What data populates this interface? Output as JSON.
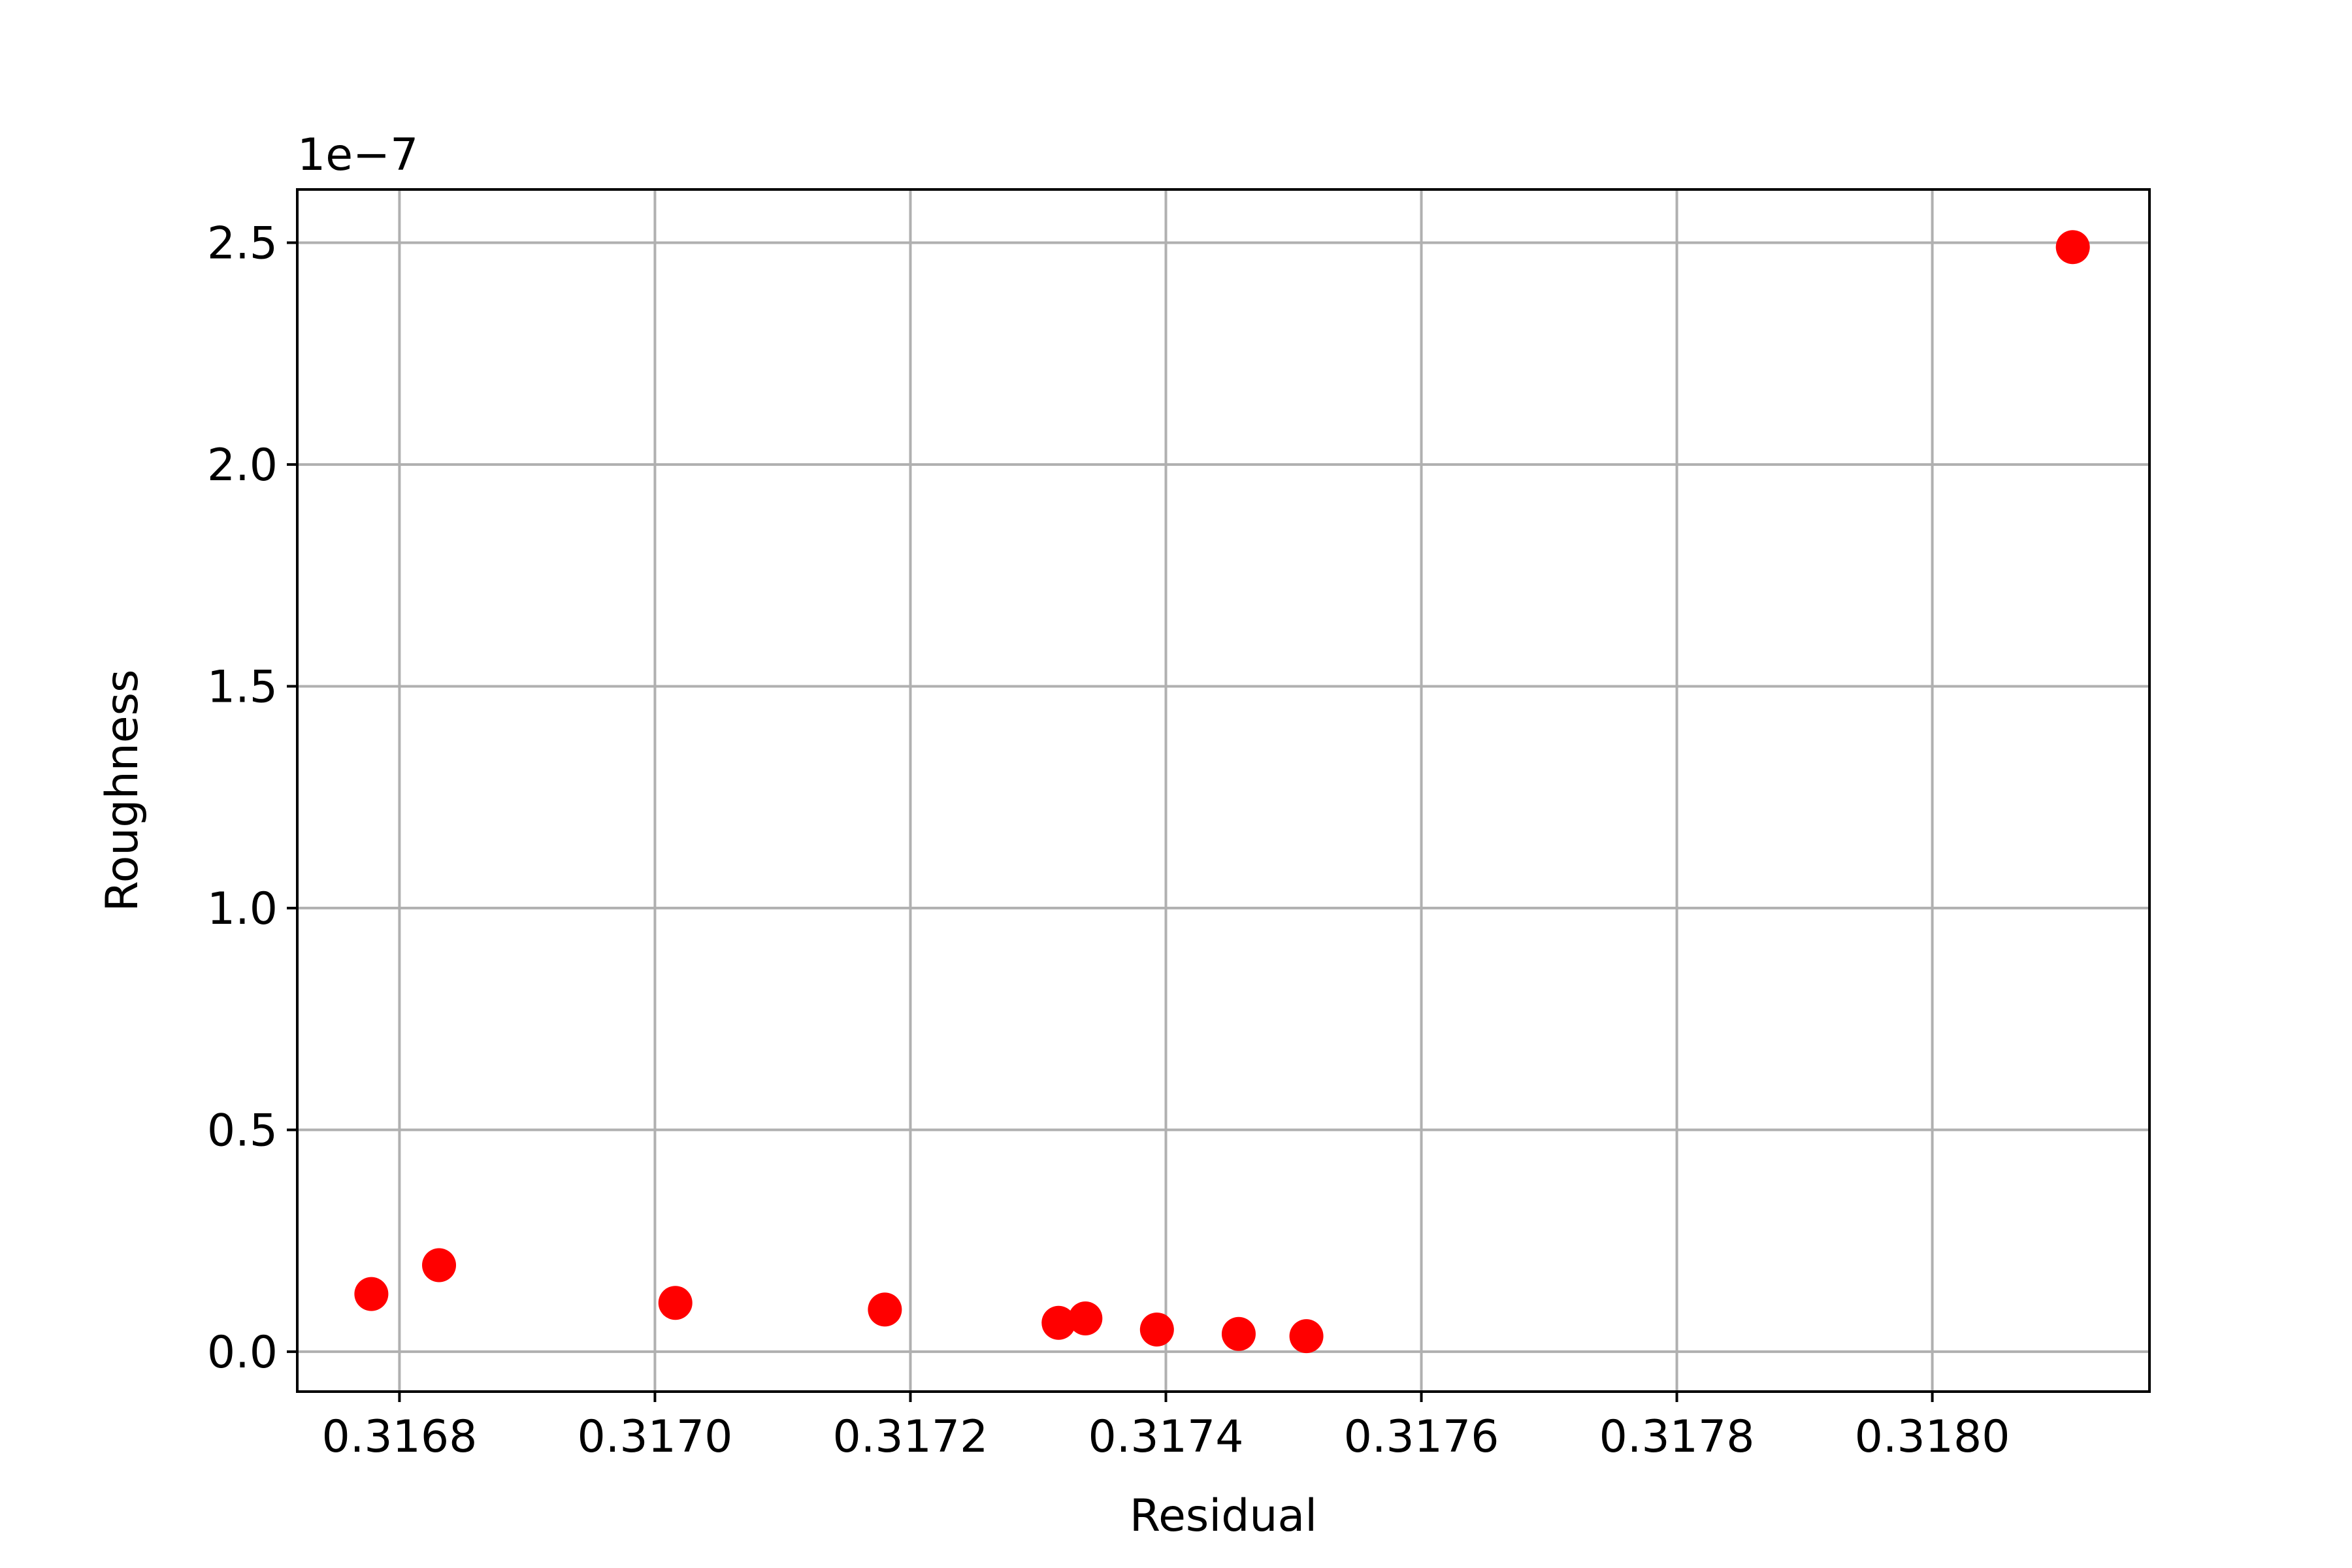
{
  "chart_data": {
    "type": "scatter",
    "xlabel": "Residual",
    "ylabel": "Roughness",
    "y_offset_label": "1e−7",
    "xlim": [
      0.31672,
      0.31817
    ],
    "ylim": [
      -9e-09,
      2.62e-07
    ],
    "grid": true,
    "marker_color": "#ff0000",
    "x_ticks": [
      0.3168,
      0.317,
      0.3172,
      0.3174,
      0.3176,
      0.3178,
      0.318
    ],
    "x_tick_labels": [
      "0.3168",
      "0.3170",
      "0.3172",
      "0.3174",
      "0.3176",
      "0.3178",
      "0.3180"
    ],
    "y_ticks": [
      0.0,
      5e-08,
      1e-07,
      1.5e-07,
      2e-07,
      2.5e-07
    ],
    "y_tick_labels": [
      "0.0",
      "0.5",
      "1.0",
      "1.5",
      "2.0",
      "2.5"
    ],
    "points": [
      {
        "x": 0.316778,
        "y": 1.3e-08
      },
      {
        "x": 0.316831,
        "y": 1.95e-08
      },
      {
        "x": 0.317016,
        "y": 1.1e-08
      },
      {
        "x": 0.31718,
        "y": 9.5e-09
      },
      {
        "x": 0.317316,
        "y": 6.5e-09
      },
      {
        "x": 0.317337,
        "y": 7.5e-09
      },
      {
        "x": 0.317393,
        "y": 5e-09
      },
      {
        "x": 0.317457,
        "y": 4e-09
      },
      {
        "x": 0.31751,
        "y": 3.5e-09
      },
      {
        "x": 0.31811,
        "y": 2.49e-07
      }
    ]
  }
}
